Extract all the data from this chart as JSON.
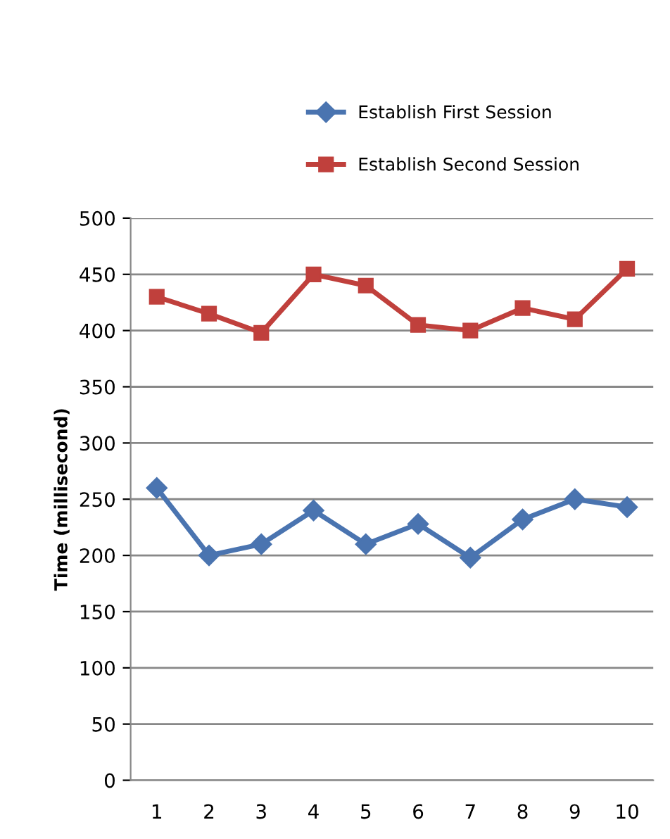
{
  "chart_data": {
    "type": "line",
    "ylabel": "Time (millisecond)",
    "categories": [
      "1",
      "2",
      "3",
      "4",
      "5",
      "6",
      "7",
      "8",
      "9",
      "10"
    ],
    "series": [
      {
        "name": "Establish First Session",
        "color": "#4a74b0",
        "marker": "diamond",
        "values": [
          260,
          200,
          210,
          240,
          210,
          228,
          198,
          232,
          250,
          243
        ]
      },
      {
        "name": "Establish Second Session",
        "color": "#c0403c",
        "marker": "square",
        "values": [
          430,
          415,
          398,
          450,
          440,
          405,
          400,
          420,
          410,
          455
        ]
      }
    ],
    "ylim": [
      0,
      500
    ],
    "yticks": [
      0,
      50,
      100,
      150,
      200,
      250,
      300,
      350,
      400,
      450,
      500
    ],
    "grid": "y",
    "legend": "top",
    "line_style": "solid"
  }
}
